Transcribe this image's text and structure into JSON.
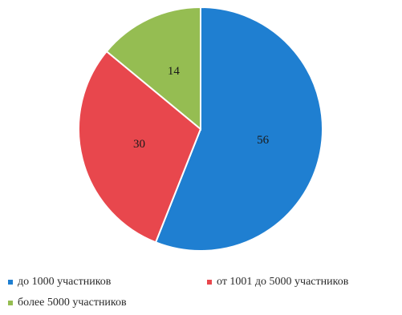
{
  "chart_data": {
    "type": "pie",
    "categories": [
      "до 1000 участников",
      "от 1001 до 5000 участников",
      "более 5000 участников"
    ],
    "values": [
      56,
      30,
      14
    ],
    "colors": [
      "#1f7fd1",
      "#e8474d",
      "#95bd52"
    ],
    "data_labels": [
      "56",
      "30",
      "14"
    ],
    "start_angle_deg": 0,
    "direction": "clockwise",
    "legend_position": "bottom",
    "title": ""
  }
}
